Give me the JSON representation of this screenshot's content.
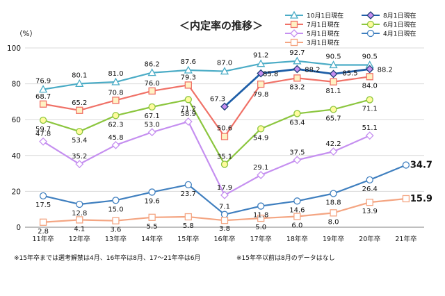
{
  "chart_data": {
    "type": "line",
    "title": "＜内定率の推移＞",
    "ylabel": "（%）",
    "ylim": [
      0,
      100
    ],
    "yticks": [
      "0",
      "20",
      "40",
      "60",
      "80",
      "100"
    ],
    "categories": [
      "11年卒",
      "12年卒",
      "13年卒",
      "14年卒",
      "15年卒",
      "16年卒",
      "17年卒",
      "18年卒",
      "19年卒",
      "20年卒",
      "21年卒"
    ],
    "series": [
      {
        "name": "10月1日現在",
        "color": "#4bacc6",
        "marker": "triangle",
        "values": [
          76.9,
          80.1,
          81.0,
          86.2,
          87.6,
          87.0,
          91.2,
          92.7,
          90.5,
          90.5,
          null
        ],
        "labels": [
          "76.9",
          "80.1",
          "81.0",
          "86.2",
          "87.6",
          "87.0",
          "91.2",
          "92.7",
          "90.5",
          "90.5",
          ""
        ]
      },
      {
        "name": "8月1日現在",
        "color": "#1f5fa8",
        "marker": "diamond",
        "values": [
          null,
          null,
          null,
          null,
          null,
          67.3,
          85.8,
          88.2,
          85.5,
          88.2,
          null
        ],
        "labels": [
          "",
          "",
          "",
          "",
          "",
          "67.3",
          "85.8",
          "88.2",
          "85.5",
          "88.2",
          ""
        ]
      },
      {
        "name": "7月1日現在",
        "color": "#f07167",
        "marker": "square",
        "values": [
          68.7,
          65.2,
          70.8,
          76.0,
          79.3,
          50.6,
          79.8,
          83.2,
          81.1,
          84.0,
          null
        ],
        "labels": [
          "68.7",
          "65.2",
          "70.8",
          "76.0",
          "79.3",
          "50.6",
          "79.8",
          "83.2",
          "81.1",
          "84.0",
          ""
        ]
      },
      {
        "name": "6月1日現在",
        "color": "#8cc63f",
        "marker": "circle",
        "values": [
          59.7,
          53.4,
          62.3,
          67.1,
          71.2,
          35.1,
          54.9,
          63.4,
          65.7,
          71.1,
          null
        ],
        "labels": [
          "59.7",
          "53.4",
          "62.3",
          "67.1",
          "71.2",
          "35.1",
          "54.9",
          "63.4",
          "65.7",
          "71.1",
          ""
        ]
      },
      {
        "name": "5月1日現在",
        "color": "#c58ff0",
        "marker": "diamond",
        "values": [
          47.8,
          35.2,
          45.8,
          53.0,
          58.9,
          17.9,
          29.1,
          37.5,
          42.2,
          51.1,
          null
        ],
        "labels": [
          "47.8",
          "35.2",
          "45.8",
          "53.0",
          "58.9",
          "17.9",
          "29.1",
          "37.5",
          "42.2",
          "51.1",
          ""
        ]
      },
      {
        "name": "4月1日現在",
        "color": "#3f7fbf",
        "marker": "circle",
        "values": [
          17.5,
          12.8,
          15.0,
          19.6,
          23.7,
          7.1,
          11.8,
          14.6,
          18.8,
          26.4,
          34.7
        ],
        "labels": [
          "17.5",
          "12.8",
          "15.0",
          "19.6",
          "23.7",
          "7.1",
          "11.8",
          "14.6",
          "18.8",
          "26.4",
          "34.7"
        ]
      },
      {
        "name": "3月1日現在",
        "color": "#f4a582",
        "marker": "square",
        "values": [
          2.8,
          4.1,
          3.6,
          5.5,
          5.8,
          3.8,
          5.0,
          6.0,
          8.0,
          13.9,
          15.9
        ],
        "labels": [
          "2.8",
          "4.1",
          "3.6",
          "5.5",
          "5.8",
          "3.8",
          "5.0",
          "6.0",
          "8.0",
          "13.9",
          "15.9"
        ]
      }
    ],
    "notes": [
      "※15年卒までは選考解禁は4月、16年卒は8月、17～21年卒は6月",
      "※15年卒以前は8月のデータはなし"
    ]
  }
}
